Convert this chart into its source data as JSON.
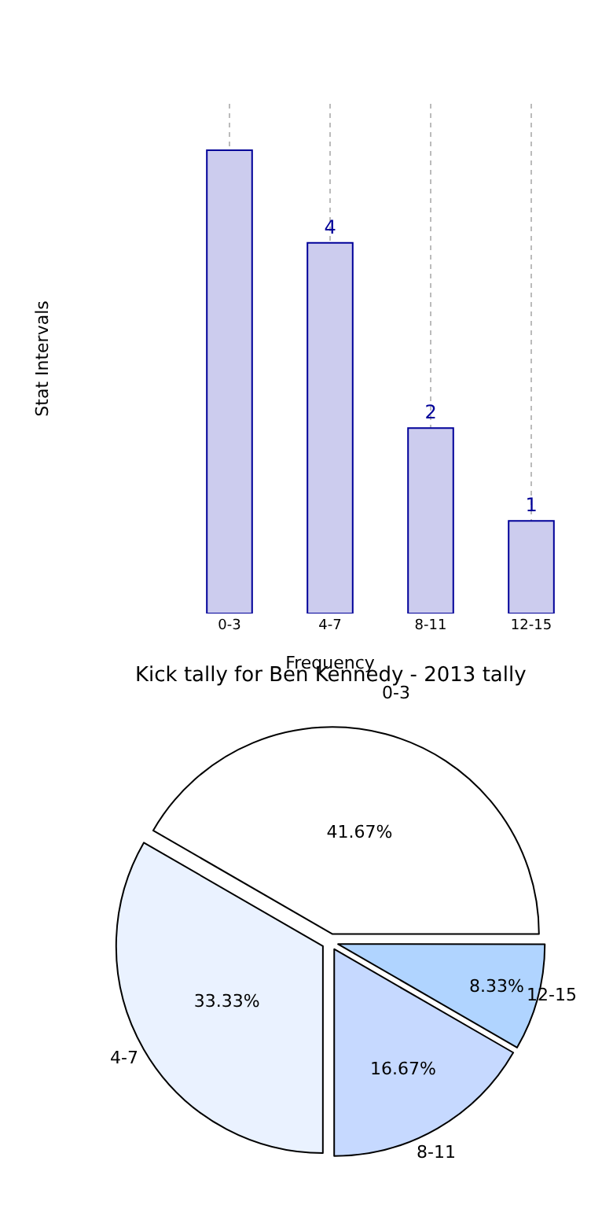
{
  "chart_data": [
    {
      "type": "bar",
      "tick_labels": "x",
      "categories": [
        "0-3",
        "4-7",
        "8-11",
        "12-15"
      ],
      "values": [
        5,
        4,
        2,
        1
      ],
      "value_labels": [
        null,
        "4",
        "2",
        "1"
      ],
      "color": "#ccccee",
      "xlabel": "Frequency",
      "ylabel": "Stat Intervals",
      "grid": "x"
    },
    {
      "type": "pie",
      "title": "Kick tally for Ben Kennedy - 2013 tally",
      "categories": [
        "0-3",
        "4-7",
        "8-11",
        "12-15"
      ],
      "values": [
        41.67,
        33.33,
        16.67,
        8.33
      ],
      "value_labels": [
        "41.67%",
        "33.33%",
        "16.67%",
        "8.33%"
      ],
      "colors": [
        "#ffffff",
        "#eaf2ff",
        "#c6d9ff",
        "#b0d4ff"
      ]
    }
  ]
}
